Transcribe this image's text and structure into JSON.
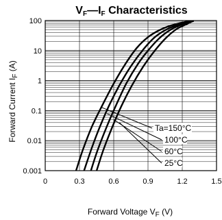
{
  "chart_data": {
    "type": "line",
    "title": {
      "v": "V",
      "v_sub": "F",
      "sep": "—",
      "i": "I",
      "i_sub": "F",
      "rest": " Characteristics"
    },
    "xlabel": {
      "main": "Forward Voltage  V",
      "sub": "F",
      "unit": " (V)"
    },
    "ylabel": {
      "main": "Forward Current  I",
      "sub": "F",
      "unit": " (A)"
    },
    "x_scale": "linear",
    "y_scale": "log",
    "xlim": [
      0,
      1.5
    ],
    "ylim": [
      0.001,
      100
    ],
    "x_ticks": [
      0,
      0.3,
      0.6,
      0.9,
      1.2,
      1.5
    ],
    "x_tick_labels": [
      "0",
      "0.3",
      "0.6",
      "0.9",
      "1.2",
      "1.5"
    ],
    "y_ticks": [
      0.001,
      0.01,
      0.1,
      1,
      10,
      100
    ],
    "y_tick_labels": [
      "0.001",
      "0.01",
      "0.1",
      "1",
      "10",
      "100"
    ],
    "grid": true,
    "series": [
      {
        "name": "Ta=150°C",
        "points": [
          [
            0.27,
            0.001
          ],
          [
            0.33,
            0.005
          ],
          [
            0.41,
            0.03
          ],
          [
            0.5,
            0.15
          ],
          [
            0.6,
            0.8
          ],
          [
            0.7,
            3.5
          ],
          [
            0.8,
            12
          ],
          [
            0.9,
            28
          ],
          [
            1.0,
            48
          ],
          [
            1.1,
            68
          ],
          [
            1.25,
            95
          ]
        ]
      },
      {
        "name": "100°C",
        "points": [
          [
            0.34,
            0.001
          ],
          [
            0.41,
            0.006
          ],
          [
            0.48,
            0.03
          ],
          [
            0.56,
            0.15
          ],
          [
            0.65,
            0.7
          ],
          [
            0.75,
            3
          ],
          [
            0.86,
            11
          ],
          [
            0.96,
            28
          ],
          [
            1.06,
            50
          ],
          [
            1.16,
            72
          ],
          [
            1.27,
            96
          ]
        ]
      },
      {
        "name": "60°C",
        "points": [
          [
            0.4,
            0.001
          ],
          [
            0.46,
            0.005
          ],
          [
            0.54,
            0.03
          ],
          [
            0.62,
            0.15
          ],
          [
            0.71,
            0.8
          ],
          [
            0.81,
            3.5
          ],
          [
            0.9,
            10
          ],
          [
            1.0,
            26
          ],
          [
            1.1,
            50
          ],
          [
            1.2,
            75
          ],
          [
            1.28,
            97
          ]
        ]
      },
      {
        "name": "25°C",
        "points": [
          [
            0.45,
            0.001
          ],
          [
            0.51,
            0.005
          ],
          [
            0.59,
            0.03
          ],
          [
            0.67,
            0.15
          ],
          [
            0.76,
            0.7
          ],
          [
            0.86,
            3
          ],
          [
            0.96,
            10
          ],
          [
            1.06,
            27
          ],
          [
            1.15,
            52
          ],
          [
            1.24,
            77
          ],
          [
            1.3,
            98
          ]
        ]
      }
    ],
    "legend": [
      "Ta=150°C",
      "100°C",
      "60°C",
      "25°C"
    ],
    "colors": {
      "line": "#000000",
      "grid": "#000000",
      "background": "#ffffff"
    }
  }
}
